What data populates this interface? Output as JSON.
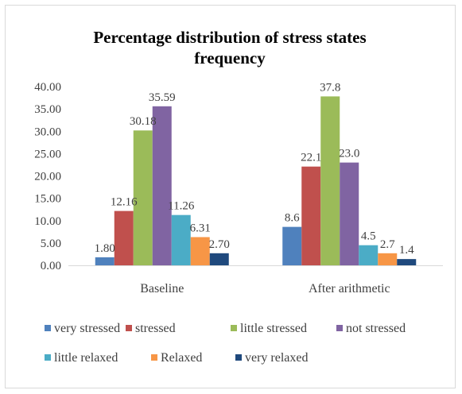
{
  "chart_data": {
    "type": "bar",
    "title": "Percentage distribution of stress states frequency",
    "title_lines": [
      "Percentage distribution of stress states",
      "frequency"
    ],
    "categories": [
      "Baseline",
      "After arithmetic"
    ],
    "ylim": [
      0,
      40
    ],
    "yticks": [
      "0.00",
      "5.00",
      "10.00",
      "15.00",
      "20.00",
      "25.00",
      "30.00",
      "35.00",
      "40.00"
    ],
    "grid": false,
    "legend_position": "bottom",
    "series": [
      {
        "name": "very stressed",
        "color": "#4f81bd",
        "values": [
          1.8,
          8.6
        ],
        "labels": [
          "1.80",
          "8.6"
        ]
      },
      {
        "name": "stressed",
        "color": "#c0504d",
        "values": [
          12.16,
          22.1
        ],
        "labels": [
          "12.16",
          "22.1"
        ]
      },
      {
        "name": "little stressed",
        "color": "#9bbb59",
        "values": [
          30.18,
          37.8
        ],
        "labels": [
          "30.18",
          "37.8"
        ]
      },
      {
        "name": "not stressed",
        "color": "#8064a2",
        "values": [
          35.59,
          23.0
        ],
        "labels": [
          "35.59",
          "23.0"
        ]
      },
      {
        "name": "little relaxed",
        "color": "#4bacc6",
        "values": [
          11.26,
          4.5
        ],
        "labels": [
          "11.26",
          "4.5"
        ]
      },
      {
        "name": "Relaxed",
        "color": "#f79646",
        "values": [
          6.31,
          2.7
        ],
        "labels": [
          "6.31",
          "2.7"
        ]
      },
      {
        "name": "very relaxed",
        "color": "#1f497d",
        "values": [
          2.7,
          1.4
        ],
        "labels": [
          "2.70",
          "1.4"
        ]
      }
    ]
  }
}
